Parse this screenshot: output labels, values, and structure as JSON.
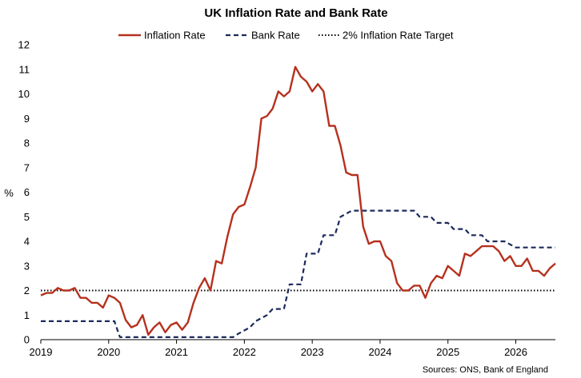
{
  "chart_data": {
    "type": "line",
    "title": "UK Inflation Rate and Bank Rate",
    "ylabel": "%",
    "xlabel": "",
    "source": "Sources: ONS, Bank of England",
    "ylim": [
      0,
      12
    ],
    "xlim": [
      "2019-01",
      "2026-08"
    ],
    "grid": false,
    "legend_position": "top",
    "y_ticks": [
      "0",
      "1",
      "2",
      "3",
      "4",
      "5",
      "6",
      "7",
      "8",
      "9",
      "10",
      "11",
      "12"
    ],
    "x_ticks": [
      {
        "x": "2019-01",
        "label": "2019"
      },
      {
        "x": "2020-01",
        "label": "2020"
      },
      {
        "x": "2021-01",
        "label": "2021"
      },
      {
        "x": "2022-01",
        "label": "2022"
      },
      {
        "x": "2023-01",
        "label": "2023"
      },
      {
        "x": "2024-01",
        "label": "2024"
      },
      {
        "x": "2025-01",
        "label": "2025"
      },
      {
        "x": "2026-01",
        "label": "2026"
      }
    ],
    "series": [
      {
        "name": "Inflation Rate",
        "color": "#b5311e",
        "style": "solid",
        "x": [
          "2019-01",
          "2019-02",
          "2019-03",
          "2019-04",
          "2019-05",
          "2019-06",
          "2019-07",
          "2019-08",
          "2019-09",
          "2019-10",
          "2019-11",
          "2019-12",
          "2020-01",
          "2020-02",
          "2020-03",
          "2020-04",
          "2020-05",
          "2020-06",
          "2020-07",
          "2020-08",
          "2020-09",
          "2020-10",
          "2020-11",
          "2020-12",
          "2021-01",
          "2021-02",
          "2021-03",
          "2021-04",
          "2021-05",
          "2021-06",
          "2021-07",
          "2021-08",
          "2021-09",
          "2021-10",
          "2021-11",
          "2021-12",
          "2022-01",
          "2022-02",
          "2022-03",
          "2022-04",
          "2022-05",
          "2022-06",
          "2022-07",
          "2022-08",
          "2022-09",
          "2022-10",
          "2022-11",
          "2022-12",
          "2023-01",
          "2023-02",
          "2023-03",
          "2023-04",
          "2023-05",
          "2023-06",
          "2023-07",
          "2023-08",
          "2023-09",
          "2023-10",
          "2023-11",
          "2023-12",
          "2024-01",
          "2024-02",
          "2024-03",
          "2024-04",
          "2024-05",
          "2024-06",
          "2024-07",
          "2024-08",
          "2024-09",
          "2024-10",
          "2024-11",
          "2024-12",
          "2025-01",
          "2025-02",
          "2025-03",
          "2025-04",
          "2025-05",
          "2025-06",
          "2025-07",
          "2025-08",
          "2025-09",
          "2025-10",
          "2025-11",
          "2025-12",
          "2026-01",
          "2026-02",
          "2026-03",
          "2026-04",
          "2026-05",
          "2026-06",
          "2026-07",
          "2026-08"
        ],
        "values": [
          1.8,
          1.9,
          1.9,
          2.1,
          2.0,
          2.0,
          2.1,
          1.7,
          1.7,
          1.5,
          1.5,
          1.3,
          1.8,
          1.7,
          1.5,
          0.8,
          0.5,
          0.6,
          1.0,
          0.2,
          0.5,
          0.7,
          0.3,
          0.6,
          0.7,
          0.4,
          0.7,
          1.5,
          2.1,
          2.5,
          2.0,
          3.2,
          3.1,
          4.2,
          5.1,
          5.4,
          5.5,
          6.2,
          7.0,
          9.0,
          9.1,
          9.4,
          10.1,
          9.9,
          10.1,
          11.1,
          10.7,
          10.5,
          10.1,
          10.4,
          10.1,
          8.7,
          8.7,
          7.9,
          6.8,
          6.7,
          6.7,
          4.6,
          3.9,
          4.0,
          4.0,
          3.4,
          3.2,
          2.3,
          2.0,
          2.0,
          2.2,
          2.2,
          1.7,
          2.3,
          2.6,
          2.5,
          3.0,
          2.8,
          2.6,
          3.5,
          3.4,
          3.6,
          3.8,
          3.8,
          3.8,
          3.6,
          3.2,
          3.4,
          3.0,
          3.0,
          3.3,
          2.8,
          2.8,
          2.6,
          2.9,
          3.1
        ]
      },
      {
        "name": "Bank Rate",
        "color": "#1b2a5b",
        "style": "dashed",
        "x": [
          "2019-01",
          "2020-01",
          "2020-02",
          "2020-03",
          "2020-04",
          "2021-01",
          "2021-11",
          "2021-12",
          "2022-02",
          "2022-03",
          "2022-05",
          "2022-06",
          "2022-08",
          "2022-09",
          "2022-11",
          "2022-12",
          "2023-02",
          "2023-03",
          "2023-05",
          "2023-06",
          "2023-08",
          "2024-07",
          "2024-08",
          "2024-10",
          "2024-11",
          "2025-01",
          "2025-02",
          "2025-04",
          "2025-05",
          "2025-07",
          "2025-08",
          "2025-10",
          "2025-11",
          "2026-01",
          "2026-08"
        ],
        "values": [
          0.75,
          0.75,
          0.75,
          0.1,
          0.1,
          0.1,
          0.1,
          0.25,
          0.5,
          0.75,
          1.0,
          1.25,
          1.25,
          2.25,
          2.25,
          3.5,
          3.5,
          4.25,
          4.25,
          5.0,
          5.25,
          5.25,
          5.0,
          5.0,
          4.75,
          4.75,
          4.5,
          4.5,
          4.25,
          4.25,
          4.0,
          4.0,
          4.0,
          3.75,
          3.75
        ]
      },
      {
        "name": "2% Inflation Rate Target",
        "color": "#000000",
        "style": "dotted",
        "x": [
          "2019-01",
          "2026-08"
        ],
        "values": [
          2,
          2
        ]
      }
    ]
  }
}
